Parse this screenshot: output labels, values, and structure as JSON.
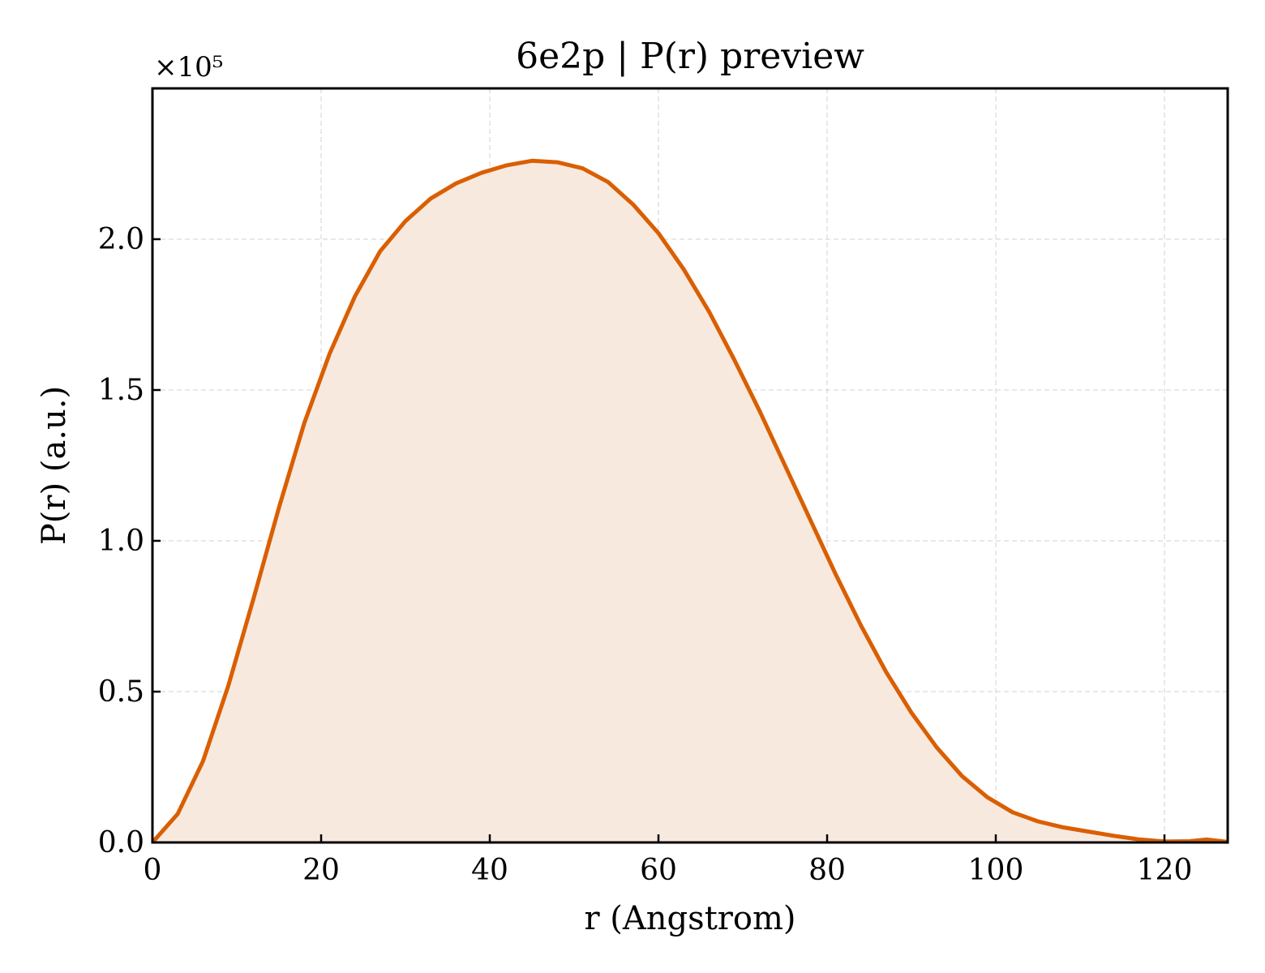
{
  "chart_data": {
    "type": "area",
    "title": "6e2p | P(r) preview",
    "xlabel": "r (Angstrom)",
    "ylabel": "P(r) (a.u.)",
    "y_offset_label": "×10⁵",
    "xlim": [
      0,
      127.5
    ],
    "ylim": [
      0,
      2.5
    ],
    "x_ticks": [
      0,
      20,
      40,
      60,
      80,
      100,
      120
    ],
    "x_tick_labels": [
      "0",
      "20",
      "40",
      "60",
      "80",
      "100",
      "120"
    ],
    "y_ticks": [
      0,
      0.5,
      1.0,
      1.5,
      2.0
    ],
    "y_tick_labels": [
      "0.0",
      "0.5",
      "1.0",
      "1.5",
      "2.0"
    ],
    "grid": true,
    "legend": "none",
    "colors": {
      "line": "#d95f02",
      "fill": "#f8e9df"
    },
    "series": [
      {
        "x": [
          0,
          3,
          6,
          9,
          12,
          15,
          18,
          21,
          24,
          27,
          30,
          33,
          36,
          39,
          42,
          45,
          48,
          51,
          54,
          57,
          60,
          63,
          66,
          69,
          72,
          75,
          78,
          81,
          84,
          87,
          90,
          93,
          96,
          99,
          102,
          105,
          108,
          111,
          114,
          117,
          120,
          123,
          125,
          127.5
        ],
        "y": [
          0.0,
          0.095,
          0.27,
          0.52,
          0.81,
          1.11,
          1.39,
          1.62,
          1.81,
          1.96,
          2.06,
          2.135,
          2.185,
          2.22,
          2.245,
          2.26,
          2.255,
          2.235,
          2.19,
          2.115,
          2.02,
          1.9,
          1.76,
          1.6,
          1.43,
          1.25,
          1.07,
          0.89,
          0.72,
          0.565,
          0.43,
          0.315,
          0.22,
          0.15,
          0.1,
          0.07,
          0.05,
          0.036,
          0.022,
          0.01,
          0.003,
          0.004,
          0.01,
          0.002
        ]
      }
    ]
  }
}
